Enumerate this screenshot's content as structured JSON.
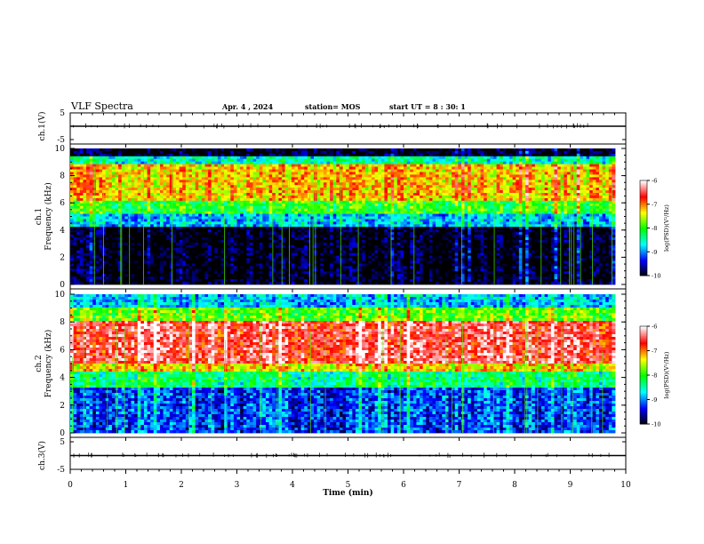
{
  "header": {
    "title": "VLF Spectra",
    "date": "Apr. 4 , 2024",
    "station": "station= MOS",
    "start_ut": "start UT = 8 : 30: 1"
  },
  "colors": {
    "scale": [
      "#000000",
      "#0000ff",
      "#00ffff",
      "#00ff00",
      "#ffff00",
      "#ff0000",
      "#ffffff"
    ]
  },
  "chart_data": [
    {
      "type": "line",
      "panel": "ch1-waveform",
      "ylabel": "ch.1(V)",
      "ylim": [
        -5,
        5
      ],
      "yticks": [
        "5",
        "-5"
      ],
      "x": [
        0,
        10
      ],
      "values": [
        0,
        0
      ],
      "xlim": [
        0,
        10
      ]
    },
    {
      "type": "heatmap",
      "panel": "ch1-spectrogram",
      "ylabel": "ch.1 Frequency (kHz)",
      "ylim": [
        0,
        10
      ],
      "yticks": [
        "0",
        "2",
        "4",
        "6",
        "8",
        "10"
      ],
      "xlim": [
        0,
        10
      ],
      "colorbar": {
        "label": "log(PSD)(V²/Hz)",
        "range": [
          -10,
          -6
        ],
        "ticks": [
          "-6",
          "-7",
          "-8",
          "-9",
          "-10"
        ]
      },
      "bands": [
        {
          "f": [
            0,
            4.2
          ],
          "level": -10
        },
        {
          "f": [
            4.2,
            5.2
          ],
          "level": -8.8
        },
        {
          "f": [
            5.2,
            6.2
          ],
          "level": -8
        },
        {
          "f": [
            6.2,
            8.8
          ],
          "level": -7.2
        },
        {
          "f": [
            8.8,
            9.4
          ],
          "level": -8.5
        },
        {
          "f": [
            9.4,
            10
          ],
          "level": -10
        }
      ]
    },
    {
      "type": "heatmap",
      "panel": "ch2-spectrogram",
      "ylabel": "ch.2 Frequency (kHz)",
      "ylim": [
        0,
        10
      ],
      "yticks": [
        "0",
        "2",
        "4",
        "6",
        "8",
        "10"
      ],
      "xlim": [
        0,
        10
      ],
      "colorbar": {
        "label": "log(PSD)(V²/Hz)",
        "range": [
          -10,
          -6
        ],
        "ticks": [
          "-6",
          "-7",
          "-8",
          "-9",
          "-10"
        ]
      },
      "bands": [
        {
          "f": [
            0,
            3.2
          ],
          "level": -9.2
        },
        {
          "f": [
            3.2,
            4.4
          ],
          "level": -8.3
        },
        {
          "f": [
            4.4,
            5.0
          ],
          "level": -7.3
        },
        {
          "f": [
            5.0,
            8.0
          ],
          "level": -6.5
        },
        {
          "f": [
            8.0,
            9.0
          ],
          "level": -7.8
        },
        {
          "f": [
            9.0,
            10
          ],
          "level": -8.8
        }
      ]
    },
    {
      "type": "line",
      "panel": "ch3-waveform",
      "ylabel": "ch.3(V)",
      "ylim": [
        -5,
        5
      ],
      "yticks": [
        "5",
        "-5"
      ],
      "x": [
        0,
        10
      ],
      "values": [
        0,
        0
      ],
      "xlim": [
        0,
        10
      ],
      "xlabel": "Time (min)",
      "xticks": [
        "0",
        "1",
        "2",
        "3",
        "4",
        "5",
        "6",
        "7",
        "8",
        "9",
        "10"
      ]
    }
  ]
}
